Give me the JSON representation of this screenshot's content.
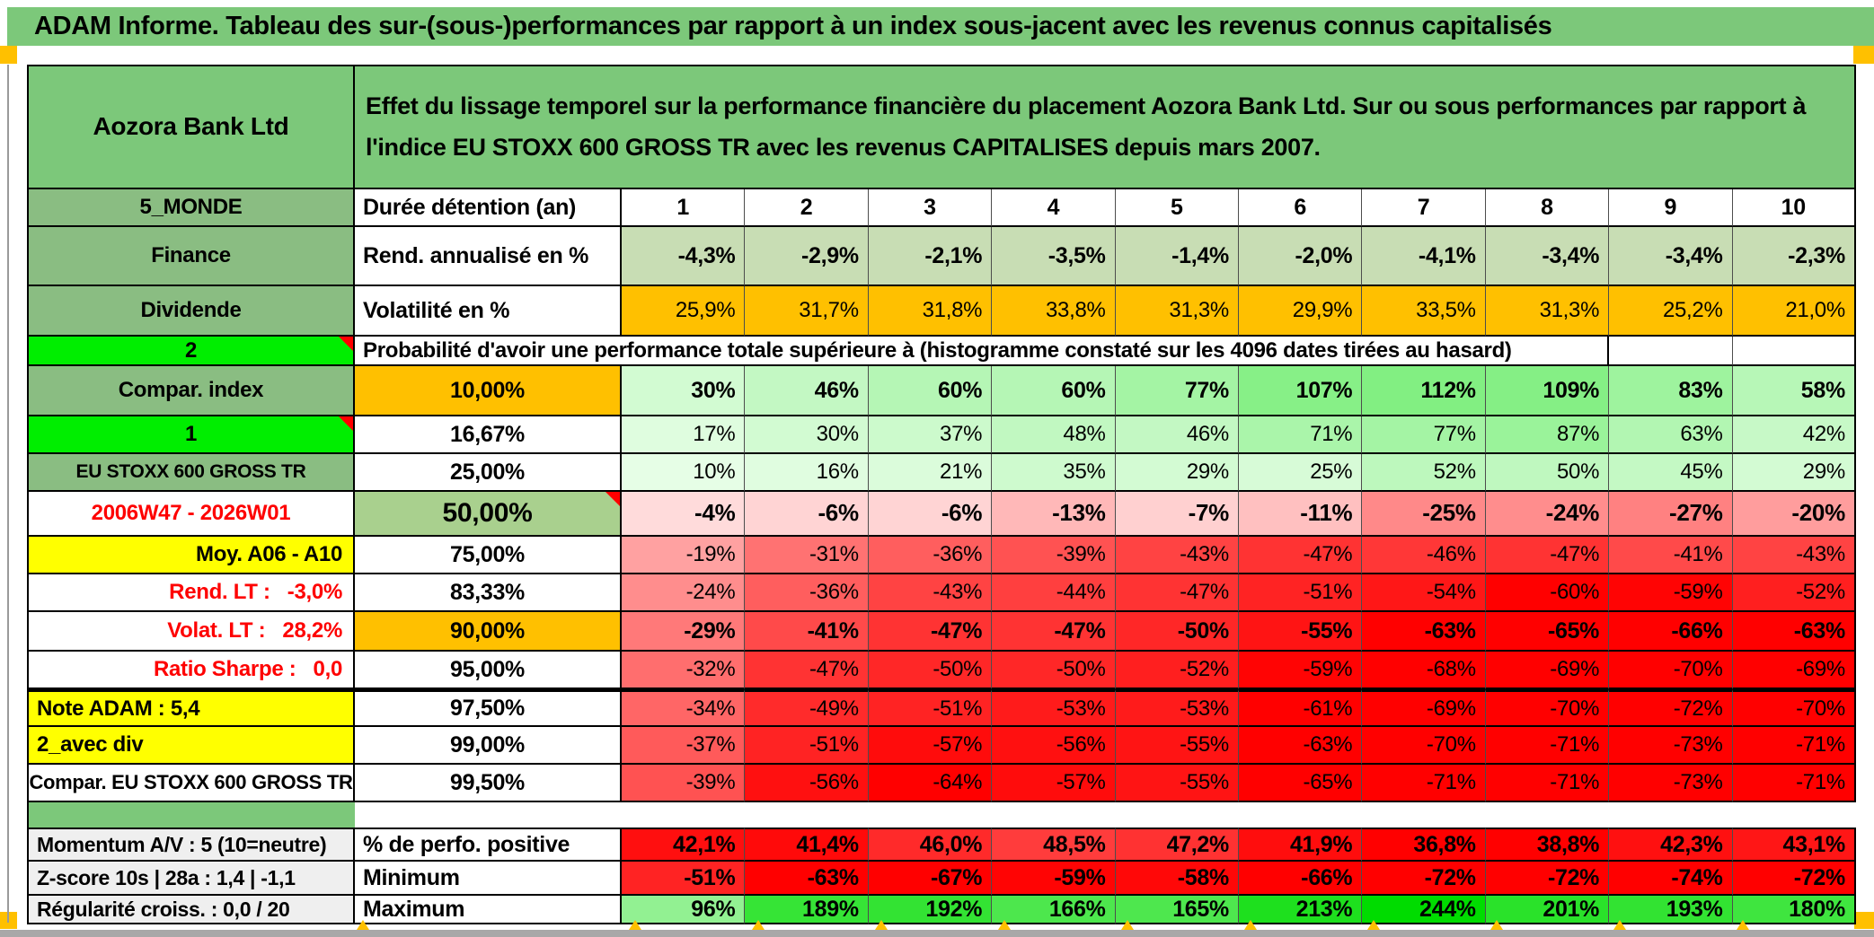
{
  "window": {
    "title": "ADAM Informe. Tableau des sur-(sous-)performances par rapport à un index sous-jacent avec les revenus connus capitalisés"
  },
  "colors": {
    "header_green": "#7cc87a",
    "label_green": "#8abd82",
    "bright_green": "#00ee00",
    "green_50": "#a9d08e",
    "sage": "#c8ddb4",
    "orange": "#ffc000",
    "yellow": "#ffff00",
    "gray_label": "#efefef",
    "red_text": "#fe0000",
    "marker_red": "#ff0000",
    "scrollbar_gray": "#a8a8a8",
    "white": "#ffffff",
    "black": "#000000"
  },
  "table": {
    "rows": [
      {
        "kind": "header",
        "label": "Aozora Bank Ltd",
        "text": "Effet du lissage temporel sur la performance financière du placement Aozora Bank Ltd. Sur ou sous performances par rapport à l'indice EU STOXX 600 GROSS TR avec les revenus CAPITALISES depuis mars 2007."
      },
      {
        "kind": "row",
        "label": "5_MONDE",
        "lbg": "label_green",
        "metric": "Durée détention (an)",
        "mal": "l",
        "mbold": true,
        "mfs": 25,
        "values": [
          "1",
          "2",
          "3",
          "4",
          "5",
          "6",
          "7",
          "8",
          "9",
          "10"
        ],
        "fill": "none",
        "vbold": true,
        "val": "c",
        "vfs": 25
      },
      {
        "kind": "row",
        "label": "Finance",
        "lbg": "label_green",
        "metric": "Rend. annualisé en %",
        "mal": "l",
        "mbold": true,
        "mfs": 25,
        "values": [
          "-4,3%",
          "-2,9%",
          "-2,1%",
          "-3,5%",
          "-1,4%",
          "-2,0%",
          "-4,1%",
          "-3,4%",
          "-3,4%",
          "-2,3%"
        ],
        "fill": "sage",
        "vbold": true,
        "vfs": 25
      },
      {
        "kind": "row",
        "label": "Dividende",
        "lbg": "label_green",
        "metric": "Volatilité en %",
        "mal": "l",
        "mbold": true,
        "mfs": 25,
        "values": [
          "25,9%",
          "31,7%",
          "31,8%",
          "33,8%",
          "31,3%",
          "29,9%",
          "33,5%",
          "31,3%",
          "25,2%",
          "21,0%"
        ],
        "fill": "orange"
      },
      {
        "kind": "prob",
        "label": "2",
        "lbg": "bright_green",
        "mark": true,
        "text": "Probabilité d'avoir une performance totale supérieure à (histogramme constaté sur les 4096 dates tirées au hasard)"
      },
      {
        "kind": "row",
        "label": "Compar. index",
        "lbg": "label_green",
        "metric": "10,00%",
        "mbg": "orange",
        "mal": "c",
        "mbold": true,
        "mfs": 25,
        "values": [
          "30%",
          "46%",
          "60%",
          "60%",
          "77%",
          "107%",
          "112%",
          "109%",
          "83%",
          "58%"
        ],
        "fill": "scale",
        "vbold": true,
        "vfs": 25
      },
      {
        "kind": "row",
        "label": "1",
        "lbg": "bright_green",
        "mark": true,
        "metric": "16,67%",
        "mal": "c",
        "mbold": true,
        "mfs": 25,
        "values": [
          "17%",
          "30%",
          "37%",
          "48%",
          "46%",
          "71%",
          "77%",
          "87%",
          "63%",
          "42%"
        ],
        "fill": "scale"
      },
      {
        "kind": "row",
        "label": "EU STOXX 600 GROSS TR",
        "lbg": "label_green",
        "lfs": 21,
        "metric": "25,00%",
        "mal": "c",
        "mbold": true,
        "mfs": 25,
        "values": [
          "10%",
          "16%",
          "21%",
          "35%",
          "29%",
          "25%",
          "52%",
          "50%",
          "45%",
          "29%"
        ],
        "fill": "scale"
      },
      {
        "kind": "row",
        "label": "2006W47 - 2026W01",
        "lfg": "red",
        "metric": "50,00%",
        "mbg": "green_50",
        "mal": "c",
        "mbold": true,
        "mfs": 30,
        "mark_m": true,
        "values": [
          "-4%",
          "-6%",
          "-6%",
          "-13%",
          "-7%",
          "-11%",
          "-25%",
          "-24%",
          "-27%",
          "-20%"
        ],
        "fill": "scale",
        "vbold": true,
        "vfs": 26
      },
      {
        "kind": "row",
        "label": "Moy. A06 - A10",
        "lbg": "yellow",
        "lal": "r",
        "metric": "75,00%",
        "mal": "c",
        "mbold": true,
        "mfs": 25,
        "values": [
          "-19%",
          "-31%",
          "-36%",
          "-39%",
          "-43%",
          "-47%",
          "-46%",
          "-47%",
          "-41%",
          "-43%"
        ],
        "fill": "scale"
      },
      {
        "kind": "row",
        "label": "Rend. LT :   -3,0%",
        "lfg": "red",
        "lal": "r",
        "metric": "83,33%",
        "mal": "c",
        "mbold": true,
        "mfs": 25,
        "values": [
          "-24%",
          "-36%",
          "-43%",
          "-44%",
          "-47%",
          "-51%",
          "-54%",
          "-60%",
          "-59%",
          "-52%"
        ],
        "fill": "scale"
      },
      {
        "kind": "row",
        "label": "Volat. LT :   28,2%",
        "lfg": "red",
        "lal": "r",
        "metric": "90,00%",
        "mbg": "orange",
        "mal": "c",
        "mbold": true,
        "mfs": 25,
        "values": [
          "-29%",
          "-41%",
          "-47%",
          "-47%",
          "-50%",
          "-55%",
          "-63%",
          "-65%",
          "-66%",
          "-63%"
        ],
        "fill": "scale",
        "vbold": true,
        "vfs": 25
      },
      {
        "kind": "row",
        "label": "Ratio Sharpe :   0,0",
        "lfg": "red",
        "lal": "r",
        "metric": "95,00%",
        "mal": "c",
        "mbold": true,
        "mfs": 25,
        "values": [
          "-32%",
          "-47%",
          "-50%",
          "-50%",
          "-52%",
          "-59%",
          "-68%",
          "-69%",
          "-70%",
          "-69%"
        ],
        "fill": "scale"
      },
      {
        "kind": "row",
        "label": "Note ADAM : 5,4",
        "lbg": "yellow",
        "lal": "l",
        "metric": "97,50%",
        "mal": "c",
        "mbold": true,
        "mfs": 25,
        "thick": true,
        "values": [
          "-34%",
          "-49%",
          "-51%",
          "-53%",
          "-53%",
          "-61%",
          "-69%",
          "-70%",
          "-72%",
          "-70%"
        ],
        "fill": "scale"
      },
      {
        "kind": "row",
        "label": "2_avec div",
        "lbg": "yellow",
        "lal": "l",
        "metric": "99,00%",
        "mal": "c",
        "mbold": true,
        "mfs": 25,
        "values": [
          "-37%",
          "-51%",
          "-57%",
          "-56%",
          "-55%",
          "-63%",
          "-70%",
          "-71%",
          "-73%",
          "-71%"
        ],
        "fill": "scale"
      },
      {
        "kind": "row",
        "label": "Compar. EU STOXX 600 GROSS TR",
        "lfs": 22,
        "metric": "99,50%",
        "mal": "c",
        "mbold": true,
        "mfs": 25,
        "values": [
          "-39%",
          "-56%",
          "-64%",
          "-57%",
          "-55%",
          "-65%",
          "-71%",
          "-71%",
          "-73%",
          "-71%"
        ],
        "fill": "scale"
      },
      {
        "kind": "spacer"
      },
      {
        "kind": "row",
        "label": "Momentum A/V : 5 (10=neutre)",
        "lbg": "gray_label",
        "lal": "l",
        "lfs": 23,
        "metric": "% de perfo. positive",
        "mal": "l",
        "mbold": true,
        "mfs": 25,
        "ttop": true,
        "values": [
          "42,1%",
          "41,4%",
          "46,0%",
          "48,5%",
          "47,2%",
          "41,9%",
          "36,8%",
          "38,8%",
          "42,3%",
          "43,1%"
        ],
        "fill": "perf",
        "vbold": true,
        "vfs": 25
      },
      {
        "kind": "row",
        "label": "Z-score 10s | 28a : 1,4 | -1,1",
        "lbg": "gray_label",
        "lal": "l",
        "lfs": 23,
        "metric": "Minimum",
        "mal": "l",
        "mbold": true,
        "mfs": 25,
        "values": [
          "-51%",
          "-63%",
          "-67%",
          "-59%",
          "-58%",
          "-66%",
          "-72%",
          "-72%",
          "-74%",
          "-72%"
        ],
        "fill": "scale",
        "vbold": true,
        "vfs": 25
      },
      {
        "kind": "row",
        "label": "Régularité croiss. : 0,0 / 20",
        "lbg": "gray_label",
        "lal": "l",
        "lfs": 23,
        "metric": "Maximum",
        "mal": "l",
        "mbold": true,
        "mfs": 25,
        "values": [
          "96%",
          "189%",
          "192%",
          "166%",
          "165%",
          "213%",
          "244%",
          "201%",
          "193%",
          "180%"
        ],
        "fill": "scale",
        "vbold": true,
        "vfs": 25
      }
    ]
  }
}
